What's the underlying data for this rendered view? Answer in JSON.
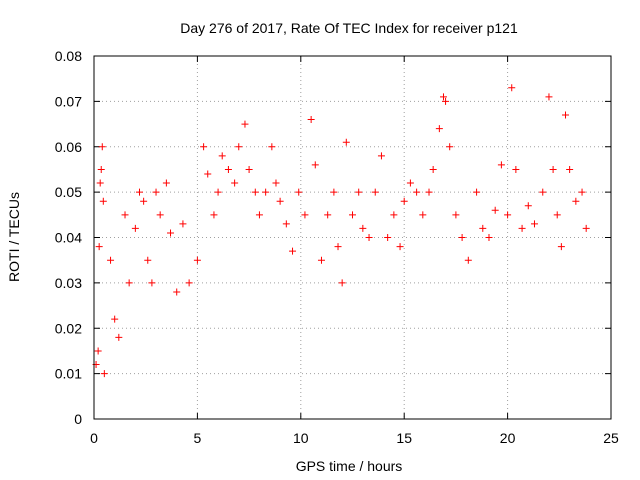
{
  "chart_data": {
    "type": "scatter",
    "title": "Day 276 of 2017, Rate Of TEC Index for receiver p121",
    "xlabel": "GPS time / hours",
    "ylabel": "ROTI / TECUs",
    "xlim": [
      0,
      25
    ],
    "ylim": [
      0,
      0.08
    ],
    "xticks": [
      0,
      5,
      10,
      15,
      20,
      25
    ],
    "yticks": [
      0,
      0.01,
      0.02,
      0.03,
      0.04,
      0.05,
      0.06,
      0.07,
      0.08
    ],
    "xtick_labels": [
      "0",
      "5",
      "10",
      "15",
      "20",
      "25"
    ],
    "ytick_labels": [
      "0",
      "0.01",
      "0.02",
      "0.03",
      "0.04",
      "0.05",
      "0.06",
      "0.07",
      "0.08"
    ],
    "grid": true,
    "marker": "plus",
    "color": "#ff0000",
    "series": [
      {
        "points": [
          [
            0.1,
            0.012
          ],
          [
            0.2,
            0.015
          ],
          [
            0.25,
            0.038
          ],
          [
            0.3,
            0.052
          ],
          [
            0.35,
            0.055
          ],
          [
            0.4,
            0.06
          ],
          [
            0.45,
            0.048
          ],
          [
            0.5,
            0.01
          ],
          [
            0.8,
            0.035
          ],
          [
            1.0,
            0.022
          ],
          [
            1.2,
            0.018
          ],
          [
            1.5,
            0.045
          ],
          [
            1.7,
            0.03
          ],
          [
            2.0,
            0.042
          ],
          [
            2.2,
            0.05
          ],
          [
            2.4,
            0.048
          ],
          [
            2.6,
            0.035
          ],
          [
            2.8,
            0.03
          ],
          [
            3.0,
            0.05
          ],
          [
            3.2,
            0.045
          ],
          [
            3.5,
            0.052
          ],
          [
            3.7,
            0.041
          ],
          [
            4.0,
            0.028
          ],
          [
            4.3,
            0.043
          ],
          [
            4.6,
            0.03
          ],
          [
            5.0,
            0.035
          ],
          [
            5.3,
            0.06
          ],
          [
            5.5,
            0.054
          ],
          [
            5.8,
            0.045
          ],
          [
            6.0,
            0.05
          ],
          [
            6.2,
            0.058
          ],
          [
            6.5,
            0.055
          ],
          [
            6.8,
            0.052
          ],
          [
            7.0,
            0.06
          ],
          [
            7.3,
            0.065
          ],
          [
            7.5,
            0.055
          ],
          [
            7.8,
            0.05
          ],
          [
            8.0,
            0.045
          ],
          [
            8.3,
            0.05
          ],
          [
            8.6,
            0.06
          ],
          [
            8.8,
            0.052
          ],
          [
            9.0,
            0.048
          ],
          [
            9.3,
            0.043
          ],
          [
            9.6,
            0.037
          ],
          [
            9.9,
            0.05
          ],
          [
            10.2,
            0.045
          ],
          [
            10.5,
            0.066
          ],
          [
            10.7,
            0.056
          ],
          [
            11.0,
            0.035
          ],
          [
            11.3,
            0.045
          ],
          [
            11.6,
            0.05
          ],
          [
            11.8,
            0.038
          ],
          [
            12.0,
            0.03
          ],
          [
            12.2,
            0.061
          ],
          [
            12.5,
            0.045
          ],
          [
            12.8,
            0.05
          ],
          [
            13.0,
            0.042
          ],
          [
            13.3,
            0.04
          ],
          [
            13.6,
            0.05
          ],
          [
            13.9,
            0.058
          ],
          [
            14.2,
            0.04
          ],
          [
            14.5,
            0.045
          ],
          [
            14.8,
            0.038
          ],
          [
            15.0,
            0.048
          ],
          [
            15.3,
            0.052
          ],
          [
            15.6,
            0.05
          ],
          [
            15.9,
            0.045
          ],
          [
            16.2,
            0.05
          ],
          [
            16.4,
            0.055
          ],
          [
            16.7,
            0.064
          ],
          [
            16.9,
            0.071
          ],
          [
            17.0,
            0.07
          ],
          [
            17.2,
            0.06
          ],
          [
            17.5,
            0.045
          ],
          [
            17.8,
            0.04
          ],
          [
            18.1,
            0.035
          ],
          [
            18.5,
            0.05
          ],
          [
            18.8,
            0.042
          ],
          [
            19.1,
            0.04
          ],
          [
            19.4,
            0.046
          ],
          [
            19.7,
            0.056
          ],
          [
            20.0,
            0.045
          ],
          [
            20.2,
            0.073
          ],
          [
            20.4,
            0.055
          ],
          [
            20.7,
            0.042
          ],
          [
            21.0,
            0.047
          ],
          [
            21.3,
            0.043
          ],
          [
            21.7,
            0.05
          ],
          [
            22.0,
            0.071
          ],
          [
            22.2,
            0.055
          ],
          [
            22.4,
            0.045
          ],
          [
            22.6,
            0.038
          ],
          [
            22.8,
            0.067
          ],
          [
            23.0,
            0.055
          ],
          [
            23.3,
            0.048
          ],
          [
            23.6,
            0.05
          ],
          [
            23.8,
            0.042
          ]
        ]
      }
    ]
  }
}
